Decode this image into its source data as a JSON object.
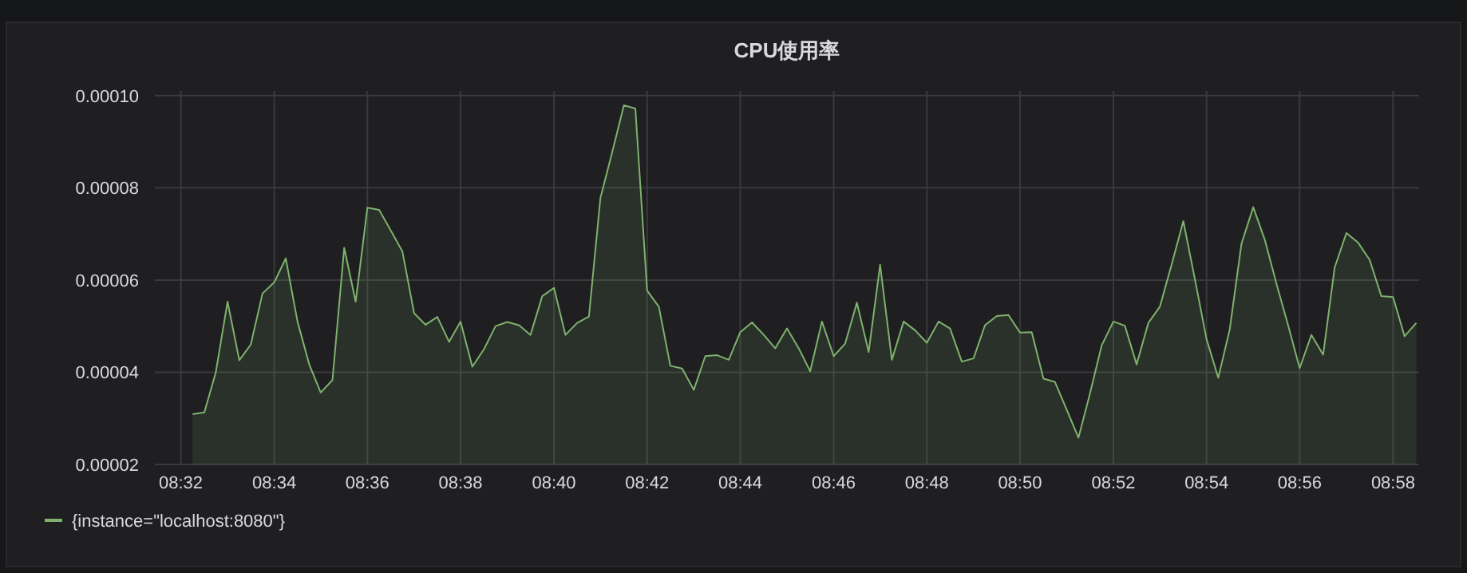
{
  "chart_data": {
    "type": "area",
    "title": "CPU使用率",
    "x": [
      8.5375,
      8.5417,
      8.5458,
      8.55,
      8.5542,
      8.5583,
      8.5625,
      8.5667,
      8.5708,
      8.575,
      8.5792,
      8.5833,
      8.5875,
      8.5917,
      8.5958,
      8.6,
      8.6042,
      8.6083,
      8.6125,
      8.6167,
      8.6208,
      8.625,
      8.6292,
      8.6333,
      8.6375,
      8.6417,
      8.6458,
      8.65,
      8.6542,
      8.6583,
      8.6625,
      8.6667,
      8.6708,
      8.675,
      8.6792,
      8.6833,
      8.6875,
      8.6917,
      8.6958,
      8.7,
      8.7042,
      8.7083,
      8.7125,
      8.7167,
      8.7208,
      8.725,
      8.7292,
      8.7333,
      8.7375,
      8.7417,
      8.7458,
      8.75,
      8.7542,
      8.7583,
      8.7625,
      8.7667,
      8.7708,
      8.775,
      8.7792,
      8.7833,
      8.7875,
      8.7917,
      8.7958,
      8.8,
      8.8042,
      8.8083,
      8.8125,
      8.8167,
      8.8208,
      8.825,
      8.8292,
      8.8333,
      8.8375,
      8.8417,
      8.8458,
      8.85,
      8.8542,
      8.8583,
      8.8625,
      8.8667,
      8.8708,
      8.875,
      8.8792,
      8.8833,
      8.8875,
      8.8917,
      8.8958,
      8.9,
      8.9042,
      8.9083,
      8.9125,
      8.9167,
      8.9208,
      8.925,
      8.9292,
      8.9333,
      8.9375,
      8.9417,
      8.9458,
      8.95,
      8.9542,
      8.9583,
      8.9625,
      8.9667,
      8.9708,
      8.975
    ],
    "series": [
      {
        "name": "{instance=\"localhost:8080\"}",
        "color": "#7eb26d",
        "values": [
          3.09e-05,
          3.13e-05,
          4e-05,
          5.53e-05,
          4.26e-05,
          4.6e-05,
          5.71e-05,
          5.95e-05,
          6.47e-05,
          5.1e-05,
          4.17e-05,
          3.56e-05,
          3.83e-05,
          6.7e-05,
          5.53e-05,
          7.57e-05,
          7.52e-05,
          7.08e-05,
          6.62e-05,
          5.28e-05,
          5.03e-05,
          5.2e-05,
          4.66e-05,
          5.1e-05,
          4.12e-05,
          4.5e-05,
          5e-05,
          5.09e-05,
          5.02e-05,
          4.81e-05,
          5.65e-05,
          5.83e-05,
          4.81e-05,
          5.07e-05,
          5.21e-05,
          7.78e-05,
          8.77e-05,
          9.79e-05,
          9.72e-05,
          5.77e-05,
          5.42e-05,
          4.14e-05,
          4.08e-05,
          3.62e-05,
          4.35e-05,
          4.37e-05,
          4.27e-05,
          4.87e-05,
          5.08e-05,
          4.81e-05,
          4.52e-05,
          4.95e-05,
          4.52e-05,
          4.02e-05,
          5.1e-05,
          4.35e-05,
          4.62e-05,
          5.51e-05,
          4.44e-05,
          6.33e-05,
          4.27e-05,
          5.1e-05,
          4.91e-05,
          4.64e-05,
          5.1e-05,
          4.95e-05,
          4.23e-05,
          4.3e-05,
          5.02e-05,
          5.22e-05,
          5.24e-05,
          4.86e-05,
          4.87e-05,
          3.86e-05,
          3.79e-05,
          3.19e-05,
          2.58e-05,
          3.53e-05,
          4.58e-05,
          5.1e-05,
          5.01e-05,
          4.17e-05,
          5.07e-05,
          5.42e-05,
          6.33e-05,
          7.28e-05,
          6.03e-05,
          4.72e-05,
          3.88e-05,
          4.93e-05,
          6.79e-05,
          7.58e-05,
          6.88e-05,
          5.92e-05,
          5.01e-05,
          4.09e-05,
          4.81e-05,
          4.38e-05,
          6.27e-05,
          7.02e-05,
          6.81e-05,
          6.44e-05,
          5.65e-05,
          5.63e-05,
          4.78e-05,
          5.07e-05
        ]
      }
    ],
    "xlim": [
      8.524,
      8.976
    ],
    "xticks": [
      {
        "value": 8.5333,
        "label": "08:32"
      },
      {
        "value": 8.5667,
        "label": "08:34"
      },
      {
        "value": 8.6,
        "label": "08:36"
      },
      {
        "value": 8.6333,
        "label": "08:38"
      },
      {
        "value": 8.6667,
        "label": "08:40"
      },
      {
        "value": 8.7,
        "label": "08:42"
      },
      {
        "value": 8.7333,
        "label": "08:44"
      },
      {
        "value": 8.7667,
        "label": "08:46"
      },
      {
        "value": 8.8,
        "label": "08:48"
      },
      {
        "value": 8.8333,
        "label": "08:50"
      },
      {
        "value": 8.8667,
        "label": "08:52"
      },
      {
        "value": 8.9,
        "label": "08:54"
      },
      {
        "value": 8.9333,
        "label": "08:56"
      },
      {
        "value": 8.9667,
        "label": "08:58"
      }
    ],
    "ylim": [
      2e-05,
      0.000101
    ],
    "yticks": [
      {
        "value": 2e-05,
        "label": "0.00002"
      },
      {
        "value": 4e-05,
        "label": "0.00004"
      },
      {
        "value": 6e-05,
        "label": "0.00006"
      },
      {
        "value": 8e-05,
        "label": "0.00008"
      },
      {
        "value": 0.0001,
        "label": "0.00010"
      }
    ],
    "grid": true,
    "legend": "bottom left"
  }
}
